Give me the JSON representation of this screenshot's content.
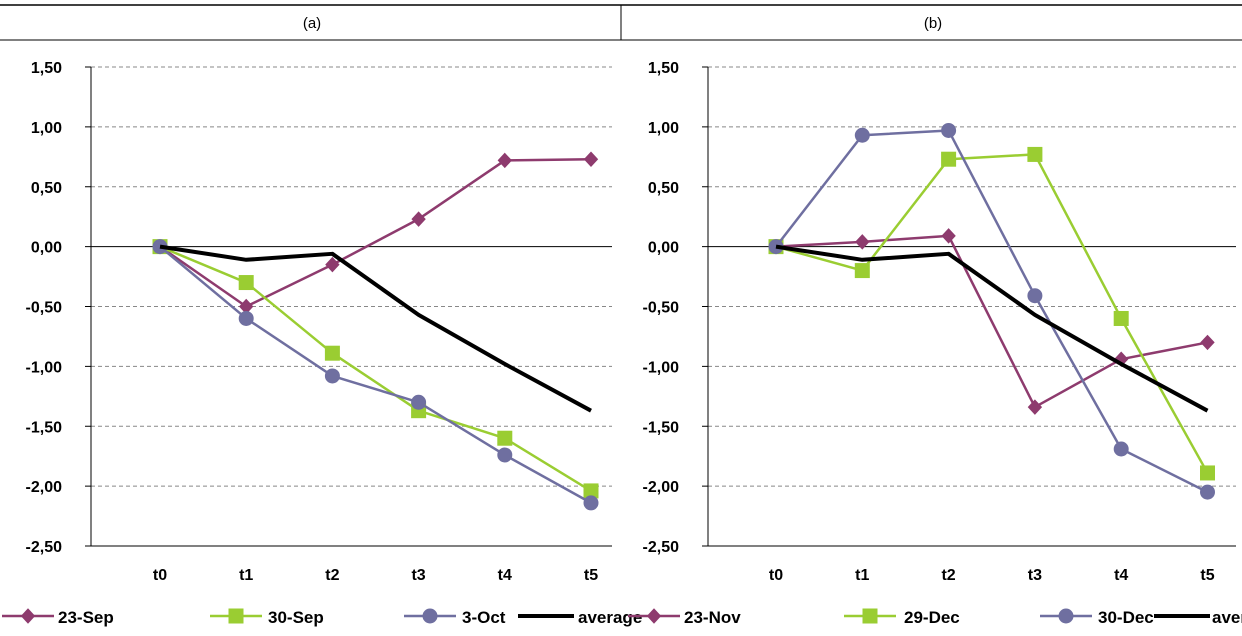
{
  "chart_data": [
    {
      "type": "line",
      "panel_label": "(a)",
      "categories": [
        "t0",
        "t1",
        "t2",
        "t3",
        "t4",
        "t5"
      ],
      "y_tick_labels": [
        "1,50",
        "1,00",
        "0,50",
        "0,00",
        "-0,50",
        "-1,00",
        "-1,50",
        "-2,00",
        "-2,50"
      ],
      "ylim": [
        -2.5,
        1.5
      ],
      "grid": "horizontal dashed",
      "legend_position": "bottom",
      "series": [
        {
          "name": "23-Sep",
          "color": "#8E3B6E",
          "marker": "diamond",
          "values": [
            0.0,
            -0.5,
            -0.15,
            0.23,
            0.72,
            0.73
          ]
        },
        {
          "name": "30-Sep",
          "color": "#9ACD32",
          "marker": "square",
          "values": [
            0.0,
            -0.3,
            -0.89,
            -1.37,
            -1.6,
            -2.04
          ]
        },
        {
          "name": "3-Oct",
          "color": "#6F6FA0",
          "marker": "circle",
          "values": [
            0.0,
            -0.6,
            -1.08,
            -1.3,
            -1.74,
            -2.14
          ]
        },
        {
          "name": "average",
          "color": "#000000",
          "marker": "none",
          "values": [
            0.0,
            -0.11,
            -0.06,
            -0.57,
            -0.98,
            -1.37
          ]
        }
      ]
    },
    {
      "type": "line",
      "panel_label": "(b)",
      "categories": [
        "t0",
        "t1",
        "t2",
        "t3",
        "t4",
        "t5"
      ],
      "y_tick_labels": [
        "1,50",
        "1,00",
        "0,50",
        "0,00",
        "-0,50",
        "-1,00",
        "-1,50",
        "-2,00",
        "-2,50"
      ],
      "ylim": [
        -2.5,
        1.5
      ],
      "grid": "horizontal dashed",
      "legend_position": "bottom",
      "series": [
        {
          "name": "23-Nov",
          "color": "#8E3B6E",
          "marker": "diamond",
          "values": [
            0.0,
            0.04,
            0.09,
            -1.34,
            -0.94,
            -0.8
          ]
        },
        {
          "name": "29-Dec",
          "color": "#9ACD32",
          "marker": "square",
          "values": [
            0.0,
            -0.2,
            0.73,
            0.77,
            -0.6,
            -1.89
          ]
        },
        {
          "name": "30-Dec",
          "color": "#6F6FA0",
          "marker": "circle",
          "values": [
            0.0,
            0.93,
            0.97,
            -0.41,
            -1.69,
            -2.05
          ]
        },
        {
          "name": "average",
          "color": "#000000",
          "marker": "none",
          "values": [
            0.0,
            -0.11,
            -0.06,
            -0.57,
            -0.98,
            -1.37
          ]
        }
      ]
    }
  ]
}
